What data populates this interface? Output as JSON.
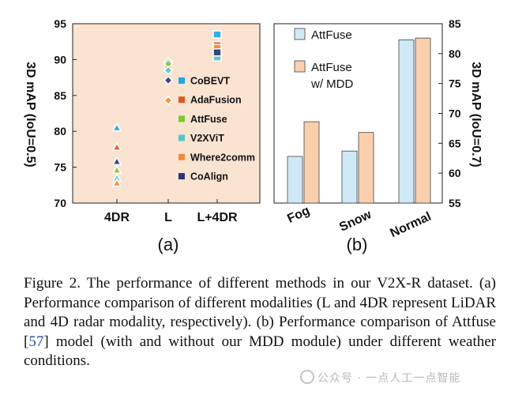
{
  "chart_data": [
    {
      "type": "scatter",
      "panel_label": "(a)",
      "ylabel": "3D mAP (IoU=0.5)",
      "ylim": [
        70,
        95
      ],
      "yticks": [
        "70",
        "75",
        "80",
        "85",
        "90",
        "95"
      ],
      "categories": [
        "4DR",
        "L",
        "L+4DR"
      ],
      "series": [
        {
          "name": "CoBEVT",
          "color": "#1fa8e8",
          "marker": "square",
          "values": [
            80.5,
            89.7,
            93.5
          ]
        },
        {
          "name": "AdaFusion",
          "color": "#e05a1a",
          "marker": "square",
          "values": [
            77.8,
            89.0,
            92.0
          ]
        },
        {
          "name": "AttFuse",
          "color": "#7acb2a",
          "marker": "diamond",
          "values": [
            74.6,
            89.4,
            91.2
          ]
        },
        {
          "name": "V2XViT",
          "color": "#55c7c2",
          "marker": "diamond",
          "values": [
            73.5,
            88.5,
            90.3
          ]
        },
        {
          "name": "Where2comm",
          "color": "#f28a3a",
          "marker": "diamond",
          "values": [
            72.8,
            84.3,
            91.6
          ]
        },
        {
          "name": "CoAlign",
          "color": "#27367a",
          "marker": "diamond",
          "values": [
            75.8,
            87.1,
            91.0
          ]
        }
      ]
    },
    {
      "type": "bar",
      "panel_label": "(b)",
      "ylabel": "3D mAP (IoU=0.7)",
      "ylim": [
        55,
        85
      ],
      "yticks": [
        "55",
        "60",
        "65",
        "70",
        "75",
        "80",
        "85"
      ],
      "categories": [
        "Fog",
        "Snow",
        "Normal"
      ],
      "series": [
        {
          "name": "AttFuse",
          "color": "#cfe9f6",
          "values": [
            62.8,
            63.7,
            82.3
          ]
        },
        {
          "name": "AttFuse w/ MDD",
          "color": "#f9cfae",
          "values": [
            68.6,
            66.8,
            82.6
          ]
        }
      ]
    }
  ],
  "legend_b_line2": "w/ MDD",
  "caption": {
    "before_ref": "Figure 2.  The performance of different methods in our V2X-R dataset. (a) Performance comparison of different modalities (L and 4DR represent LiDAR and 4D radar modality, respectively). (b) Performance comparison of Attfuse [",
    "ref": "57",
    "after_ref": "] model (with and without our MDD module) under different weather conditions."
  },
  "watermark": "公众号 · 一点人工一点智能"
}
